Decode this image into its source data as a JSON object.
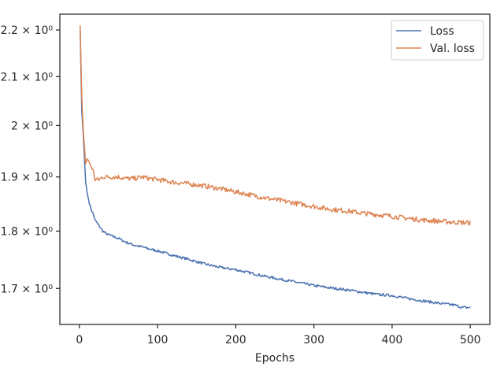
{
  "chart_data": {
    "type": "line",
    "title": "",
    "xlabel": "Epochs",
    "ylabel": "",
    "xlim": [
      -25,
      525
    ],
    "ylim": [
      1.64,
      2.235
    ],
    "yscale": "log",
    "grid": false,
    "legend_position": "top-right",
    "x_ticks": [
      {
        "value": 0,
        "label": "0"
      },
      {
        "value": 100,
        "label": "100"
      },
      {
        "value": 200,
        "label": "200"
      },
      {
        "value": 300,
        "label": "300"
      },
      {
        "value": 400,
        "label": "400"
      },
      {
        "value": 500,
        "label": "500"
      }
    ],
    "y_ticks": [
      {
        "value": 1.7,
        "label": "1.7 × 10⁰"
      },
      {
        "value": 1.8,
        "label": "1.8 × 10⁰"
      },
      {
        "value": 1.9,
        "label": "1.9 × 10⁰"
      },
      {
        "value": 2.0,
        "label": "2 × 10⁰"
      },
      {
        "value": 2.1,
        "label": "2.1 × 10⁰"
      },
      {
        "value": 2.2,
        "label": "2.2 × 10⁰"
      }
    ],
    "series": [
      {
        "name": "Loss",
        "color": "#4c72b0",
        "x": [
          1,
          3,
          5,
          8,
          10,
          12,
          15,
          18,
          20,
          25,
          30,
          35,
          40,
          50,
          60,
          70,
          80,
          90,
          100,
          120,
          140,
          160,
          180,
          200,
          220,
          240,
          260,
          280,
          300,
          320,
          340,
          360,
          380,
          400,
          420,
          440,
          460,
          480,
          490,
          500
        ],
        "y": [
          2.2,
          2.03,
          1.98,
          1.89,
          1.87,
          1.855,
          1.84,
          1.83,
          1.82,
          1.81,
          1.8,
          1.795,
          1.792,
          1.787,
          1.78,
          1.775,
          1.772,
          1.768,
          1.765,
          1.757,
          1.75,
          1.742,
          1.736,
          1.732,
          1.726,
          1.72,
          1.715,
          1.71,
          1.705,
          1.701,
          1.698,
          1.694,
          1.69,
          1.688,
          1.683,
          1.679,
          1.675,
          1.672,
          1.668,
          1.668
        ]
      },
      {
        "name": "Val. loss",
        "color": "#dd8452",
        "x": [
          1,
          3,
          5,
          8,
          10,
          12,
          15,
          18,
          20,
          25,
          30,
          40,
          50,
          60,
          70,
          80,
          90,
          100,
          120,
          140,
          160,
          180,
          200,
          220,
          240,
          260,
          280,
          300,
          320,
          340,
          360,
          380,
          400,
          420,
          440,
          460,
          480,
          500
        ],
        "y": [
          2.21,
          2.06,
          1.99,
          1.925,
          1.935,
          1.93,
          1.92,
          1.91,
          1.895,
          1.895,
          1.9,
          1.9,
          1.9,
          1.897,
          1.897,
          1.9,
          1.897,
          1.895,
          1.89,
          1.887,
          1.883,
          1.878,
          1.872,
          1.866,
          1.86,
          1.855,
          1.85,
          1.845,
          1.84,
          1.837,
          1.833,
          1.83,
          1.827,
          1.823,
          1.82,
          1.818,
          1.816,
          1.815
        ]
      }
    ]
  }
}
